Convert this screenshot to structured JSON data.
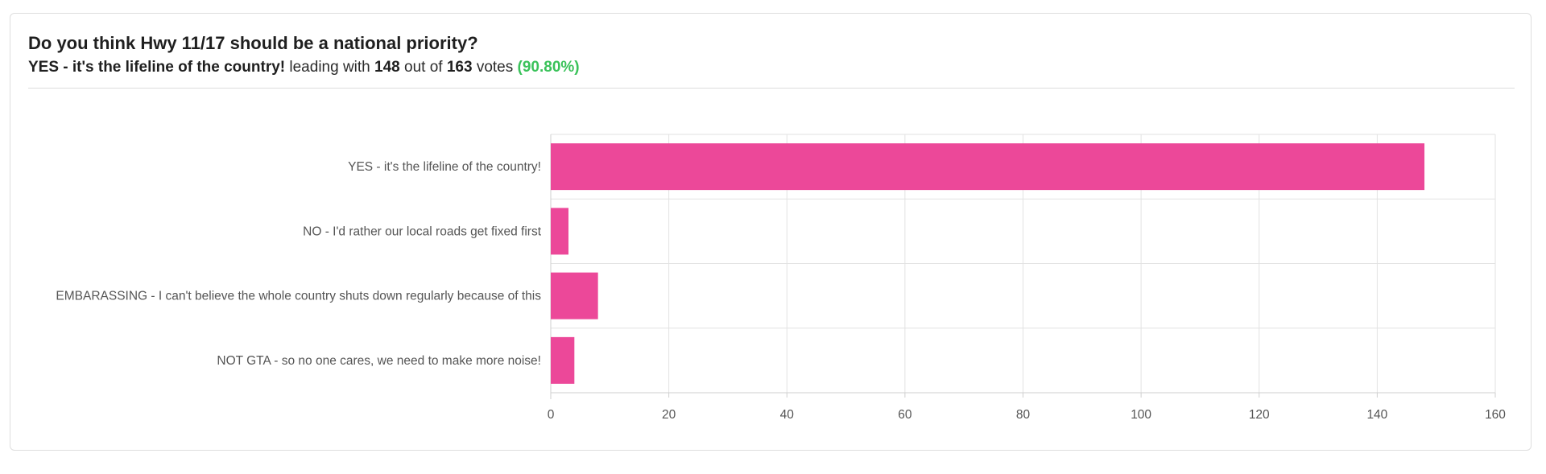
{
  "poll": {
    "question": "Do you think Hwy 11/17 should be a national priority?",
    "leader": "YES - it's the lifeline of the country!",
    "leading_with_text": "leading with",
    "leader_votes": "148",
    "out_of_text": "out of",
    "total_votes": "163",
    "votes_text": "votes",
    "percent": "(90.80%)"
  },
  "colors": {
    "bar": "#ec4899",
    "percent": "#3ac25a",
    "grid": "#e2e2e2"
  },
  "chart_data": {
    "type": "bar",
    "orientation": "horizontal",
    "categories": [
      "YES - it's the lifeline of the country!",
      "NO - I'd rather our local roads get fixed first",
      "EMBARASSING - I can't believe the whole country shuts down regularly because of this",
      "NOT GTA - so no one cares, we need to make more noise!"
    ],
    "values": [
      148,
      3,
      8,
      4
    ],
    "xlim": [
      0,
      160
    ],
    "xticks": [
      0,
      20,
      40,
      60,
      80,
      100,
      120,
      140,
      160
    ],
    "grid": true,
    "title": "",
    "xlabel": "",
    "ylabel": ""
  }
}
